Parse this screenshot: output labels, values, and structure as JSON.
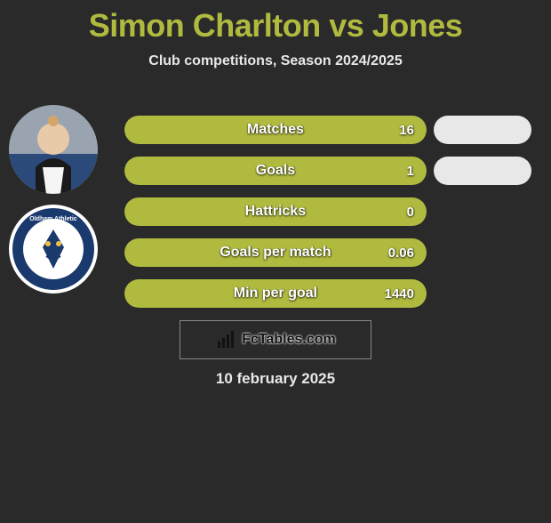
{
  "title": "Simon Charlton vs Jones",
  "subtitle": "Club competitions, Season 2024/2025",
  "date": "10 february 2025",
  "footer_brand": "FcTables.com",
  "colors": {
    "primary": "#b0ba3f",
    "bar_bg": "#4a4a4a",
    "pill_bg": "#e8e8e8",
    "page_bg": "#2a2a2a",
    "text_light": "#e8e8e8"
  },
  "stats": [
    {
      "label": "Matches",
      "value": "16",
      "fill_pct": 100,
      "show_pill": true
    },
    {
      "label": "Goals",
      "value": "1",
      "fill_pct": 100,
      "show_pill": true
    },
    {
      "label": "Hattricks",
      "value": "0",
      "fill_pct": 100,
      "show_pill": false
    },
    {
      "label": "Goals per match",
      "value": "0.06",
      "fill_pct": 100,
      "show_pill": false
    },
    {
      "label": "Min per goal",
      "value": "1440",
      "fill_pct": 100,
      "show_pill": false
    }
  ],
  "avatars": [
    {
      "name": "player1-avatar",
      "type": "person"
    },
    {
      "name": "club-badge",
      "type": "badge"
    }
  ]
}
